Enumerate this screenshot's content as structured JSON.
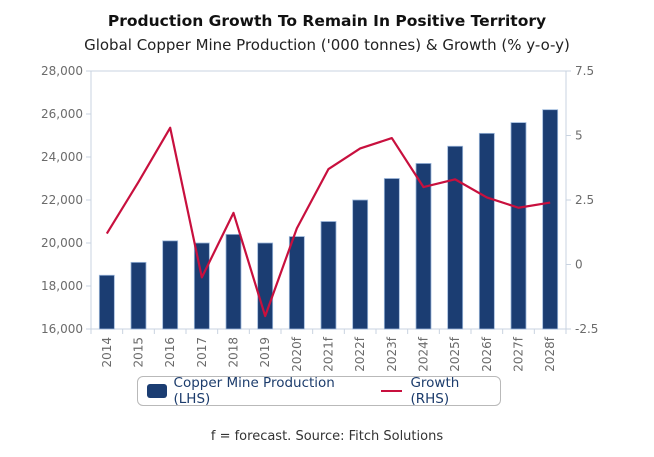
{
  "chart_data": {
    "type": "bar",
    "title": "Production Growth To Remain In Positive Territory",
    "subtitle": "Global Copper Mine Production ('000 tonnes) & Growth (% y-o-y)",
    "categories": [
      "2014",
      "2015",
      "2016",
      "2017",
      "2018",
      "2019",
      "2020f",
      "2021f",
      "2022f",
      "2023f",
      "2024f",
      "2025f",
      "2026f",
      "2027f",
      "2028f"
    ],
    "series": [
      {
        "name": "Copper Mine Production (LHS)",
        "type": "bar",
        "axis": "left",
        "color": "#1b3d72",
        "values": [
          18500,
          19100,
          20100,
          20000,
          20400,
          20000,
          20300,
          21000,
          22000,
          23000,
          23700,
          24500,
          25100,
          25600,
          26200
        ]
      },
      {
        "name": "Growth (RHS)",
        "type": "line",
        "axis": "right",
        "color": "#c8103e",
        "values": [
          1.2,
          3.2,
          5.3,
          -0.5,
          2.0,
          -2.0,
          1.4,
          3.7,
          4.5,
          4.9,
          3.0,
          3.3,
          2.6,
          2.2,
          2.4
        ]
      }
    ],
    "y_left": {
      "ylim": [
        16000,
        28000
      ],
      "ticks": [
        16000,
        18000,
        20000,
        22000,
        24000,
        26000,
        28000
      ],
      "tick_labels": [
        "16,000",
        "18,000",
        "20,000",
        "22,000",
        "24,000",
        "26,000",
        "28,000"
      ]
    },
    "y_right": {
      "ylim": [
        -2.5,
        7.5
      ],
      "ticks": [
        -2.5,
        0,
        2.5,
        5,
        7.5
      ],
      "tick_labels": [
        "-2.5",
        "0",
        "2.5",
        "5",
        "7.5"
      ]
    },
    "xlabel": "",
    "ylabel": "",
    "grid": false,
    "legend_position": "bottom",
    "footnote": "f = forecast. Source: Fitch Solutions"
  }
}
